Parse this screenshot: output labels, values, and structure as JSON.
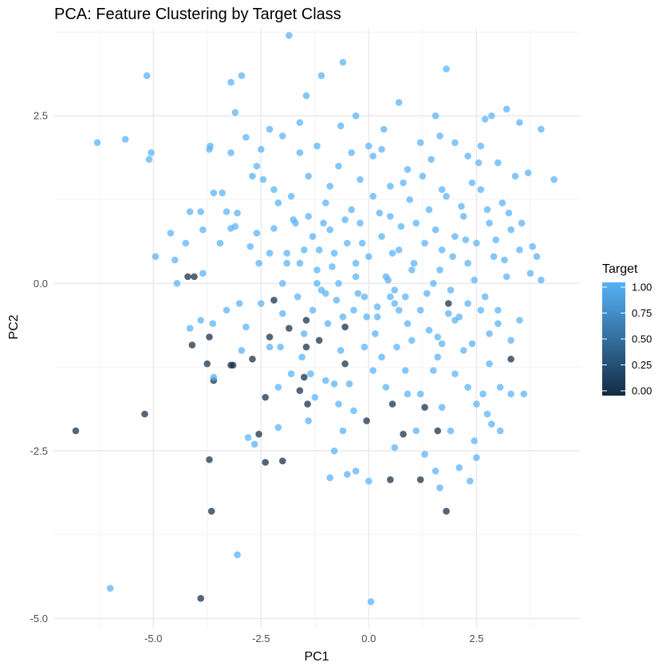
{
  "chart_data": {
    "type": "scatter",
    "title": "PCA: Feature Clustering by Target Class",
    "xlabel": "PC1",
    "ylabel": "PC2",
    "xlim": [
      -7.3,
      4.9
    ],
    "ylim": [
      -5.15,
      3.8
    ],
    "x_ticks": [
      -5.0,
      -2.5,
      0.0,
      2.5
    ],
    "y_ticks": [
      2.5,
      0.0,
      -2.5,
      -5.0
    ],
    "x_tick_labels": [
      "-5.0",
      "-2.5",
      "0.0",
      "2.5"
    ],
    "y_tick_labels": [
      "2.5",
      "0.0",
      "-2.5",
      "-5.0"
    ],
    "grid": true,
    "legend": {
      "title": "Target",
      "position": "right",
      "type": "colorbar",
      "labels": [
        "1.00",
        "0.75",
        "0.50",
        "0.25",
        "0.00"
      ],
      "values": [
        1.0,
        0.75,
        0.5,
        0.25,
        0.0
      ],
      "low_color": "#132B43",
      "high_color": "#56B1F7"
    },
    "colors": {
      "target_0": "#132B43",
      "target_1": "#56B1F7"
    },
    "series": [
      {
        "target": 0,
        "points": [
          [
            -6.8,
            -2.2
          ],
          [
            -5.2,
            -1.95
          ],
          [
            -4.2,
            0.1
          ],
          [
            -4.05,
            0.1
          ],
          [
            -4.1,
            -0.92
          ],
          [
            -3.7,
            -0.8
          ],
          [
            -3.75,
            -1.2
          ],
          [
            -3.6,
            -1.45
          ],
          [
            -3.2,
            -1.22
          ],
          [
            -3.15,
            -1.22
          ],
          [
            -2.7,
            -1.13
          ],
          [
            -2.55,
            -2.25
          ],
          [
            -2.4,
            -2.67
          ],
          [
            -2.2,
            -0.25
          ],
          [
            -2.3,
            -0.8
          ],
          [
            -2.4,
            -1.7
          ],
          [
            -2.0,
            -2.65
          ],
          [
            -1.85,
            -0.67
          ],
          [
            -1.6,
            -1.6
          ],
          [
            -1.45,
            -0.55
          ],
          [
            -1.45,
            -0.95
          ],
          [
            -1.5,
            -1.4
          ],
          [
            -1.42,
            -1.8
          ],
          [
            -1.15,
            -0.85
          ],
          [
            -0.55,
            -0.65
          ],
          [
            -0.55,
            -1.2
          ],
          [
            -0.05,
            -2.05
          ],
          [
            0.55,
            -1.8
          ],
          [
            0.8,
            -2.25
          ],
          [
            0.5,
            -2.93
          ],
          [
            1.3,
            -1.85
          ],
          [
            1.2,
            -2.93
          ],
          [
            1.6,
            -2.2
          ],
          [
            1.85,
            -0.3
          ],
          [
            1.8,
            -3.4
          ],
          [
            3.3,
            -1.13
          ],
          [
            -3.7,
            -2.63
          ],
          [
            -3.65,
            -3.4
          ],
          [
            -3.9,
            -4.7
          ]
        ]
      },
      {
        "target": 1,
        "points": [
          [
            -6.3,
            2.1
          ],
          [
            -5.65,
            2.15
          ],
          [
            -5.15,
            3.1
          ],
          [
            -5.1,
            1.85
          ],
          [
            -5.05,
            1.95
          ],
          [
            -4.95,
            0.4
          ],
          [
            -4.6,
            0.75
          ],
          [
            -4.45,
            0.0
          ],
          [
            -4.25,
            0.6
          ],
          [
            -4.15,
            1.07
          ],
          [
            -4.15,
            -0.67
          ],
          [
            -3.85,
            0.15
          ],
          [
            -3.7,
            2.0
          ],
          [
            -3.68,
            2.05
          ],
          [
            -3.62,
            -0.6
          ],
          [
            -3.4,
            1.35
          ],
          [
            -3.3,
            1.07
          ],
          [
            -3.2,
            0.82
          ],
          [
            -3.2,
            1.95
          ],
          [
            -3.1,
            0.85
          ],
          [
            -3.05,
            1.05
          ],
          [
            -2.95,
            3.1
          ],
          [
            -2.85,
            2.18
          ],
          [
            -2.75,
            0.55
          ],
          [
            -2.55,
            0.3
          ],
          [
            -2.5,
            -0.3
          ],
          [
            -2.3,
            0.45
          ],
          [
            -2.2,
            0.82
          ],
          [
            -2.1,
            1.2
          ],
          [
            -2.0,
            0.0
          ],
          [
            -1.9,
            0.45
          ],
          [
            -1.8,
            1.3
          ],
          [
            -1.7,
            0.9
          ],
          [
            -1.6,
            0.3
          ],
          [
            -1.5,
            0.5
          ],
          [
            -1.4,
            1.0
          ],
          [
            -1.3,
            0.7
          ],
          [
            -1.2,
            0.2
          ],
          [
            -1.1,
            -0.1
          ],
          [
            -1.0,
            1.2
          ],
          [
            -0.9,
            0.8
          ],
          [
            -0.8,
            0.45
          ],
          [
            -0.7,
            0.0
          ],
          [
            -0.6,
            -0.5
          ],
          [
            -0.5,
            0.6
          ],
          [
            -0.4,
            1.1
          ],
          [
            -0.3,
            0.3
          ],
          [
            -0.2,
            0.9
          ],
          [
            -0.1,
            -0.2
          ],
          [
            0.0,
            0.4
          ],
          [
            0.1,
            1.3
          ],
          [
            0.2,
            -0.5
          ],
          [
            0.3,
            0.7
          ],
          [
            0.4,
            0.1
          ],
          [
            0.5,
            1.0
          ],
          [
            0.6,
            -0.3
          ],
          [
            0.7,
            0.5
          ],
          [
            0.8,
            1.5
          ],
          [
            0.9,
            -0.6
          ],
          [
            1.0,
            0.2
          ],
          [
            1.1,
            0.9
          ],
          [
            1.2,
            -0.4
          ],
          [
            1.3,
            0.6
          ],
          [
            1.4,
            1.1
          ],
          [
            1.5,
            0.0
          ],
          [
            1.6,
            -0.8
          ],
          [
            1.7,
            0.5
          ],
          [
            1.8,
            1.3
          ],
          [
            1.9,
            -0.1
          ],
          [
            2.0,
            0.7
          ],
          [
            2.1,
            -0.5
          ],
          [
            2.2,
            1.0
          ],
          [
            2.3,
            0.3
          ],
          [
            2.4,
            -0.9
          ],
          [
            2.5,
            0.6
          ],
          [
            2.6,
            1.4
          ],
          [
            2.7,
            -0.2
          ],
          [
            2.8,
            0.9
          ],
          [
            2.9,
            0.4
          ],
          [
            3.0,
            -0.6
          ],
          [
            3.1,
            1.2
          ],
          [
            3.2,
            0.1
          ],
          [
            3.3,
            0.8
          ],
          [
            3.5,
            0.5
          ],
          [
            3.8,
            0.55
          ],
          [
            3.9,
            0.4
          ],
          [
            4.0,
            0.05
          ],
          [
            4.0,
            2.3
          ],
          [
            4.3,
            1.55
          ],
          [
            3.5,
            2.4
          ],
          [
            3.2,
            2.6
          ],
          [
            3.4,
            1.6
          ],
          [
            2.85,
            2.5
          ],
          [
            2.7,
            2.45
          ],
          [
            2.6,
            2.05
          ],
          [
            2.55,
            1.8
          ],
          [
            2.3,
            1.9
          ],
          [
            2.0,
            2.1
          ],
          [
            1.55,
            2.5
          ],
          [
            1.65,
            2.2
          ],
          [
            1.8,
            3.2
          ],
          [
            0.7,
            2.7
          ],
          [
            0.3,
            2.0
          ],
          [
            -0.3,
            2.5
          ],
          [
            -0.6,
            3.3
          ],
          [
            -1.1,
            3.1
          ],
          [
            -1.45,
            2.8
          ],
          [
            -1.6,
            2.4
          ],
          [
            -1.85,
            3.7
          ],
          [
            -2.0,
            2.2
          ],
          [
            -2.3,
            2.3
          ],
          [
            -2.5,
            2.0
          ],
          [
            -2.6,
            1.75
          ],
          [
            -3.1,
            2.55
          ],
          [
            -3.2,
            3.0
          ],
          [
            -1.9,
            0.3
          ],
          [
            -1.75,
            0.95
          ],
          [
            -1.5,
            -0.75
          ],
          [
            -1.3,
            -0.4
          ],
          [
            -1.0,
            -0.15
          ],
          [
            -0.8,
            -1.5
          ],
          [
            -0.45,
            -1.5
          ],
          [
            -0.1,
            -0.95
          ],
          [
            0.3,
            -1.1
          ],
          [
            0.6,
            -0.1
          ],
          [
            0.9,
            -1.65
          ],
          [
            1.2,
            -1.65
          ],
          [
            1.5,
            -1.3
          ],
          [
            1.7,
            -1.85
          ],
          [
            2.0,
            -1.35
          ],
          [
            2.3,
            -1.55
          ],
          [
            2.5,
            -1.8
          ],
          [
            2.8,
            -1.2
          ],
          [
            3.05,
            -1.55
          ],
          [
            3.3,
            -1.65
          ],
          [
            3.6,
            -1.65
          ],
          [
            3.5,
            -0.55
          ],
          [
            3.0,
            -0.4
          ],
          [
            2.8,
            -0.75
          ],
          [
            2.6,
            -0.4
          ],
          [
            2.3,
            -0.3
          ],
          [
            2.0,
            -0.55
          ],
          [
            1.7,
            -0.9
          ],
          [
            1.4,
            -0.7
          ],
          [
            1.0,
            -0.85
          ],
          [
            0.7,
            -0.4
          ],
          [
            0.5,
            -0.2
          ],
          [
            0.2,
            -0.35
          ],
          [
            -0.05,
            -0.5
          ],
          [
            -0.35,
            -0.4
          ],
          [
            -0.65,
            -1.0
          ],
          [
            -0.95,
            -0.6
          ],
          [
            -1.25,
            -1.7
          ],
          [
            -1.55,
            -1.1
          ],
          [
            -1.8,
            -1.35
          ],
          [
            -2.05,
            -0.95
          ],
          [
            -2.3,
            -0.95
          ],
          [
            -2.65,
            -2.4
          ],
          [
            -2.85,
            -0.65
          ],
          [
            -3.0,
            -0.3
          ],
          [
            -3.3,
            -0.4
          ],
          [
            -3.6,
            -1.4
          ],
          [
            -3.9,
            -0.55
          ],
          [
            -2.2,
            1.4
          ],
          [
            -1.4,
            1.6
          ],
          [
            -0.7,
            1.75
          ],
          [
            0.1,
            1.9
          ],
          [
            0.9,
            1.7
          ],
          [
            1.7,
            1.4
          ],
          [
            2.4,
            1.5
          ],
          [
            3.0,
            1.8
          ],
          [
            3.7,
            1.65
          ],
          [
            1.2,
            2.1
          ],
          [
            0.5,
            1.45
          ],
          [
            -0.2,
            1.55
          ],
          [
            -0.9,
            1.45
          ],
          [
            -1.6,
            1.95
          ],
          [
            -2.7,
            1.6
          ],
          [
            -3.6,
            1.35
          ],
          [
            -3.9,
            1.07
          ],
          [
            -0.3,
            -2.8
          ],
          [
            -0.9,
            -2.9
          ],
          [
            -0.5,
            -2.85
          ],
          [
            0.0,
            -2.95
          ],
          [
            0.6,
            -2.45
          ],
          [
            1.3,
            -2.55
          ],
          [
            1.55,
            -2.8
          ],
          [
            1.65,
            -3.05
          ],
          [
            2.1,
            -2.75
          ],
          [
            2.35,
            -2.95
          ],
          [
            2.5,
            -2.6
          ],
          [
            2.45,
            -2.35
          ],
          [
            1.9,
            -2.2
          ],
          [
            2.85,
            -2.1
          ],
          [
            3.05,
            -2.2
          ],
          [
            -0.8,
            -2.5
          ],
          [
            -0.6,
            -2.2
          ],
          [
            -1.4,
            -2.05
          ],
          [
            -2.1,
            -2.15
          ],
          [
            -2.8,
            -2.3
          ],
          [
            -3.05,
            -4.05
          ],
          [
            -6.0,
            -4.55
          ],
          [
            0.05,
            -4.75
          ],
          [
            -0.3,
            0.1
          ],
          [
            0.45,
            0.05
          ],
          [
            -0.15,
            0.6
          ],
          [
            0.25,
            1.05
          ],
          [
            0.75,
            0.85
          ],
          [
            1.05,
            0.3
          ],
          [
            1.35,
            -0.15
          ],
          [
            -1.15,
            0.5
          ],
          [
            -0.55,
            0.95
          ],
          [
            0.15,
            -0.75
          ],
          [
            0.65,
            -0.95
          ],
          [
            1.55,
            0.8
          ],
          [
            1.95,
            0.4
          ],
          [
            -1.65,
            -0.2
          ],
          [
            -2.0,
            -0.45
          ],
          [
            -0.85,
            0.25
          ],
          [
            0.95,
            1.25
          ],
          [
            1.25,
            1.6
          ],
          [
            -0.4,
            1.95
          ],
          [
            0.35,
            2.3
          ],
          [
            -1.2,
            2.05
          ],
          [
            -2.45,
            1.55
          ],
          [
            2.15,
            1.15
          ],
          [
            2.75,
            1.1
          ],
          [
            3.25,
            1.05
          ],
          [
            1.45,
            1.85
          ],
          [
            0.0,
            2.05
          ],
          [
            -0.65,
            2.35
          ],
          [
            -1.05,
            0.9
          ],
          [
            -0.25,
            -0.15
          ],
          [
            0.55,
            0.45
          ],
          [
            1.85,
            -0.45
          ],
          [
            2.45,
            0.05
          ],
          [
            -2.6,
            0.75
          ],
          [
            -3.45,
            0.6
          ],
          [
            -3.85,
            0.8
          ],
          [
            -1.35,
            -1.35
          ],
          [
            -0.7,
            -1.8
          ],
          [
            0.1,
            -1.3
          ],
          [
            0.85,
            -1.3
          ],
          [
            1.6,
            -1.1
          ],
          [
            2.2,
            -1.0
          ],
          [
            2.65,
            -1.65
          ],
          [
            3.3,
            -0.85
          ],
          [
            3.75,
            0.15
          ],
          [
            3.15,
            0.35
          ],
          [
            -4.5,
            0.35
          ],
          [
            -2.95,
            -1.0
          ],
          [
            -2.1,
            -1.55
          ],
          [
            -1.0,
            -1.45
          ],
          [
            -0.35,
            -1.9
          ],
          [
            0.4,
            -1.55
          ],
          [
            1.1,
            -2.2
          ],
          [
            2.75,
            -1.95
          ],
          [
            -1.2,
            0.0
          ],
          [
            -0.75,
            -0.25
          ],
          [
            0.85,
            -0.2
          ],
          [
            1.65,
            0.2
          ],
          [
            2.25,
            0.65
          ],
          [
            2.95,
            0.65
          ],
          [
            3.55,
            0.9
          ]
        ]
      }
    ]
  }
}
